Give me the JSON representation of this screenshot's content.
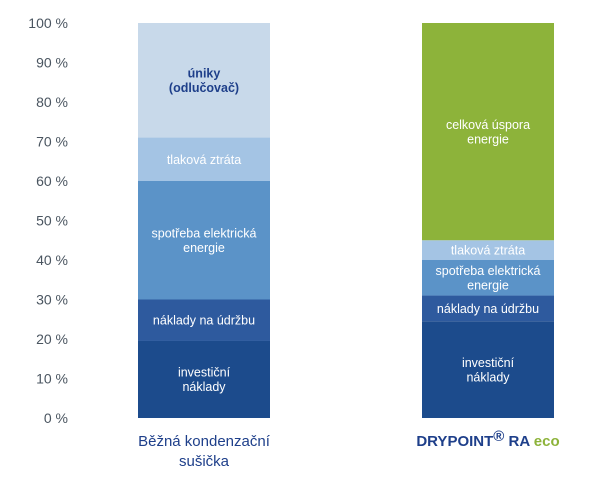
{
  "chart_data": {
    "type": "bar",
    "stacked": true,
    "ylim": [
      0,
      100
    ],
    "ytick_labels": [
      "0 %",
      "10 %",
      "20 %",
      "30 %",
      "40 %",
      "50 %",
      "60 %",
      "70 %",
      "80 %",
      "90 %",
      "100 %"
    ],
    "grid": false,
    "bars": [
      {
        "category": "Běžná kondenzační sušička",
        "category_lines": [
          "Běžná kondenzační",
          "sušička"
        ],
        "segments": [
          {
            "label": [
              "investiční",
              "náklady"
            ],
            "value": 19.5,
            "color": "#1c4b8c",
            "text_color": "#ffffff",
            "bold": false
          },
          {
            "label": [
              "náklady na údržbu"
            ],
            "value": 10.5,
            "color": "#2e5a9e",
            "text_color": "#ffffff",
            "bold": false
          },
          {
            "label": [
              "spotřeba elektrická",
              "energie"
            ],
            "value": 30,
            "color": "#5b93c8",
            "text_color": "#ffffff",
            "bold": false
          },
          {
            "label": [
              "tlaková ztráta"
            ],
            "value": 11,
            "color": "#a4c4e4",
            "text_color": "#ffffff",
            "bold": false
          },
          {
            "label": [
              "úniky",
              "(odlučovač)"
            ],
            "value": 29,
            "color": "#c8d9ea",
            "text_color": "#1e3f8a",
            "bold": true
          }
        ]
      },
      {
        "category": "DRYPOINT® RA eco",
        "brand": {
          "main": "DRYPOINT",
          "reg": "®",
          "model": " RA ",
          "eco": "eco"
        },
        "segments": [
          {
            "label": [
              "investiční",
              "náklady"
            ],
            "value": 24.5,
            "color": "#1c4b8c",
            "text_color": "#ffffff",
            "bold": false
          },
          {
            "label": [
              "náklady na údržbu"
            ],
            "value": 6.5,
            "color": "#2e5a9e",
            "text_color": "#ffffff",
            "bold": false
          },
          {
            "label": [
              "spotřeba elektrická",
              "energie"
            ],
            "value": 9,
            "color": "#5b93c8",
            "text_color": "#ffffff",
            "bold": false
          },
          {
            "label": [
              "tlaková ztráta"
            ],
            "value": 5,
            "color": "#a4c4e4",
            "text_color": "#ffffff",
            "bold": false
          },
          {
            "label": [
              "celková úspora",
              "energie"
            ],
            "value": 55,
            "color": "#8db33a",
            "text_color": "#ffffff",
            "bold": false
          }
        ]
      }
    ],
    "colors": {
      "axis_text": "#4a5560",
      "category_text": "#1e3f8a",
      "eco_text": "#8db33a"
    }
  }
}
